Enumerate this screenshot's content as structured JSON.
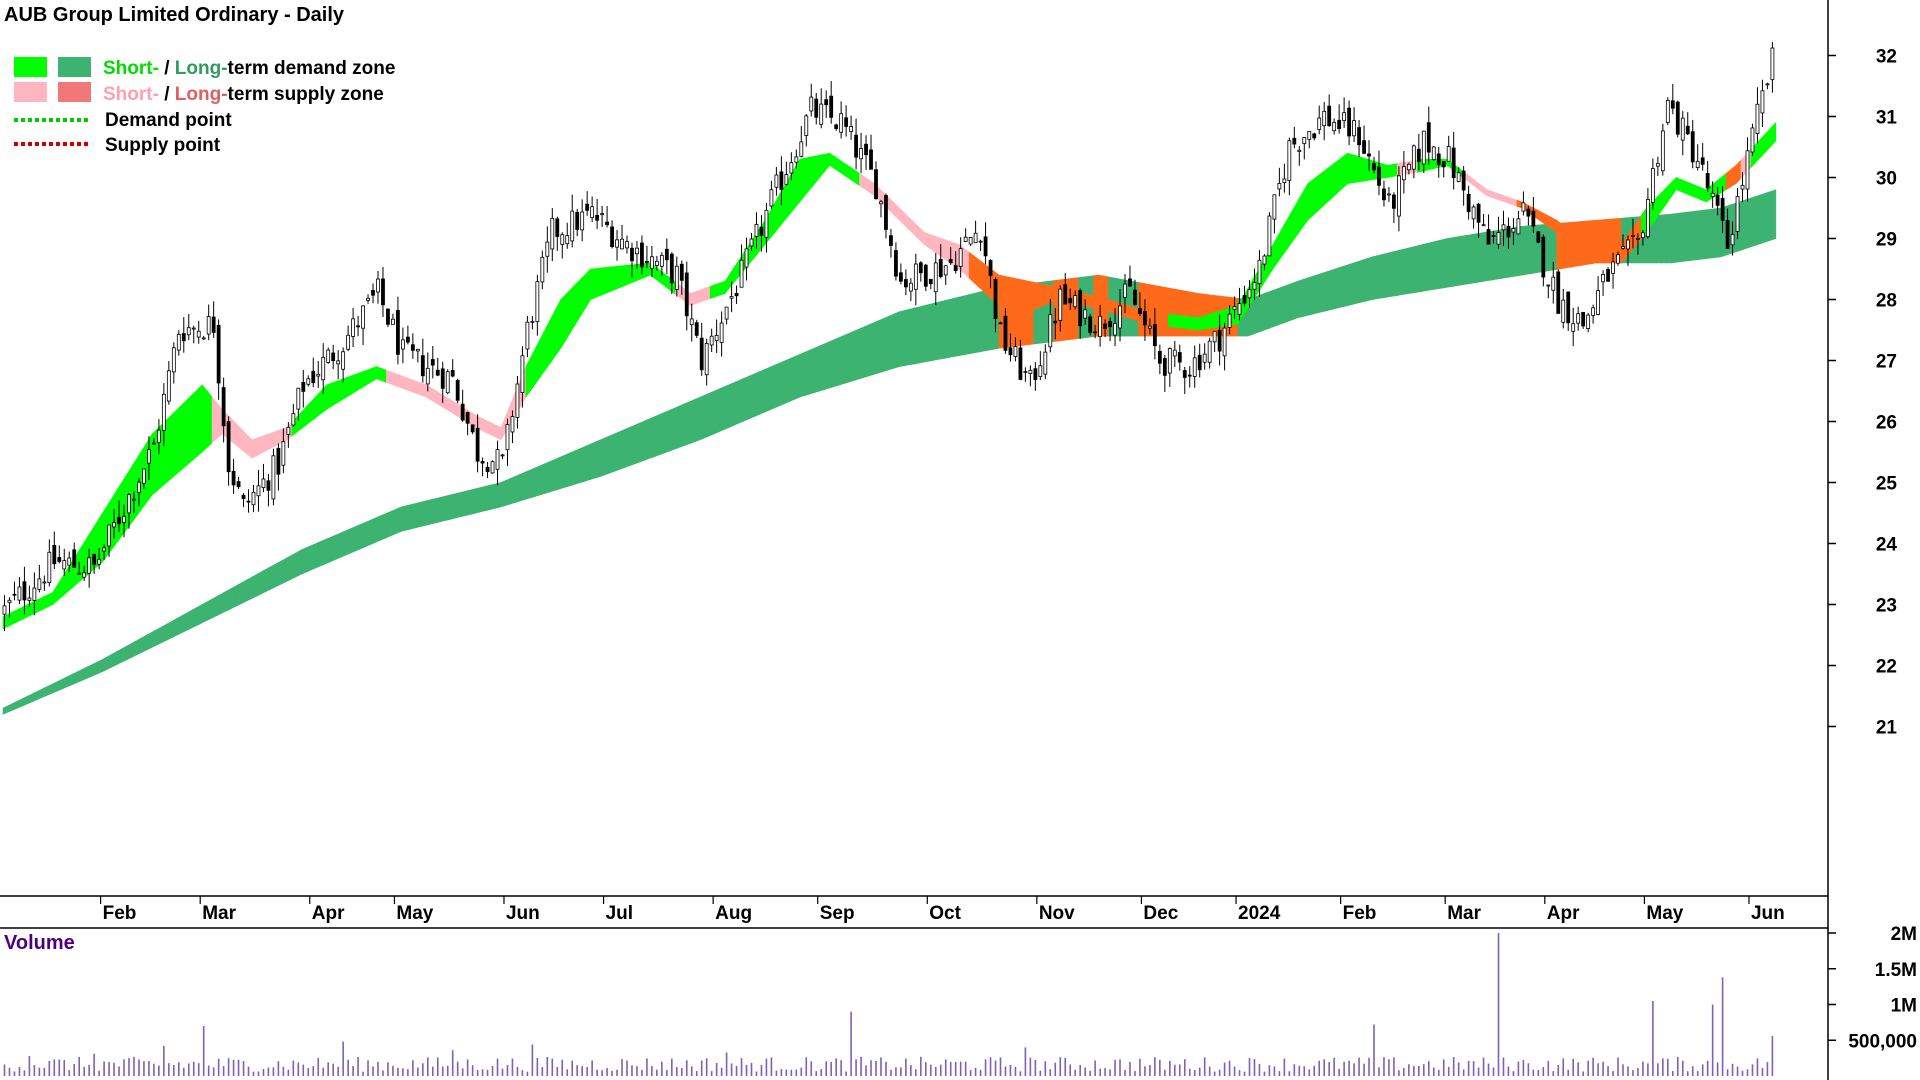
{
  "title": "AUB Group Limited Ordinary - Daily",
  "legend": {
    "demand_zone": {
      "short": "Short-",
      "sep": " / ",
      "long": "Long-",
      "rest": "term demand zone"
    },
    "supply_zone": {
      "short": "Short-",
      "sep": " / ",
      "long": "Long-",
      "rest": "term supply zone"
    },
    "demand_point": "Demand point",
    "supply_point": "Supply point"
  },
  "colors": {
    "short_demand": "#00ff00",
    "long_demand": "#3cb371",
    "short_supply": "#ffb6c1",
    "long_supply": "#f07878",
    "active_supply": "#ff6a1a",
    "demand_point": "#00cc00",
    "supply_point": "#cc0000",
    "candle": "#000000",
    "volume_bar": "#8060b0",
    "volume_label": "#4b0082"
  },
  "chart_data": {
    "type": "candlestick",
    "title": "AUB Group Limited Ordinary - Daily",
    "price_axis": {
      "min": 20.9,
      "max": 32.8,
      "ticks": [
        21,
        22,
        23,
        24,
        25,
        26,
        27,
        28,
        29,
        30,
        31,
        32
      ]
    },
    "months": [
      "Feb",
      "Mar",
      "Apr",
      "May",
      "Jun",
      "Jul",
      "Aug",
      "Sep",
      "Oct",
      "Nov",
      "Dec",
      "2024",
      "Feb",
      "Mar",
      "Apr",
      "May",
      "Jun"
    ],
    "month_start_index": [
      20,
      40,
      62,
      79,
      101,
      121,
      143,
      164,
      186,
      208,
      229,
      248,
      269,
      290,
      310,
      330,
      351
    ],
    "total_sessions": 356,
    "close_anchors": [
      [
        0,
        22.9
      ],
      [
        10,
        23.7
      ],
      [
        18,
        23.6
      ],
      [
        30,
        25.6
      ],
      [
        35,
        27.5
      ],
      [
        42,
        27.6
      ],
      [
        45,
        25.3
      ],
      [
        48,
        24.6
      ],
      [
        55,
        25.3
      ],
      [
        60,
        26.6
      ],
      [
        68,
        27.3
      ],
      [
        75,
        28.1
      ],
      [
        80,
        27.1
      ],
      [
        90,
        26.7
      ],
      [
        95,
        25.5
      ],
      [
        100,
        25.3
      ],
      [
        105,
        27.5
      ],
      [
        110,
        29.1
      ],
      [
        118,
        29.4
      ],
      [
        125,
        28.9
      ],
      [
        135,
        28.4
      ],
      [
        140,
        27.0
      ],
      [
        148,
        28.4
      ],
      [
        155,
        29.8
      ],
      [
        162,
        31.1
      ],
      [
        168,
        30.9
      ],
      [
        175,
        29.9
      ],
      [
        180,
        28.3
      ],
      [
        190,
        28.6
      ],
      [
        196,
        29.2
      ],
      [
        200,
        27.4
      ],
      [
        206,
        26.6
      ],
      [
        212,
        28.0
      ],
      [
        220,
        27.6
      ],
      [
        226,
        28.1
      ],
      [
        232,
        27.0
      ],
      [
        238,
        26.9
      ],
      [
        244,
        27.4
      ],
      [
        252,
        28.5
      ],
      [
        258,
        30.5
      ],
      [
        265,
        31.0
      ],
      [
        272,
        30.7
      ],
      [
        278,
        29.5
      ],
      [
        285,
        30.6
      ],
      [
        290,
        30.3
      ],
      [
        298,
        28.9
      ],
      [
        305,
        29.4
      ],
      [
        312,
        28.0
      ],
      [
        317,
        27.6
      ],
      [
        322,
        28.4
      ],
      [
        328,
        28.9
      ],
      [
        334,
        31.2
      ],
      [
        340,
        30.3
      ],
      [
        346,
        28.9
      ],
      [
        352,
        31.0
      ],
      [
        356,
        32.2
      ]
    ],
    "short_zone": [
      [
        0,
        22.8,
        22.6
      ],
      [
        10,
        23.2,
        23.0
      ],
      [
        20,
        24.5,
        23.7
      ],
      [
        30,
        25.8,
        24.8
      ],
      [
        40,
        26.6,
        25.5
      ],
      [
        44,
        26.2,
        25.8
      ],
      [
        50,
        25.7,
        25.4
      ],
      [
        57,
        25.9,
        25.7
      ],
      [
        65,
        26.6,
        26.2
      ],
      [
        75,
        26.9,
        26.7
      ],
      [
        85,
        26.6,
        26.4
      ],
      [
        95,
        26.1,
        25.9
      ],
      [
        100,
        25.9,
        25.7
      ],
      [
        105,
        26.9,
        26.4
      ],
      [
        112,
        28.0,
        27.2
      ],
      [
        118,
        28.5,
        28.0
      ],
      [
        130,
        28.6,
        28.4
      ],
      [
        138,
        28.1,
        27.9
      ],
      [
        145,
        28.3,
        28.1
      ],
      [
        153,
        29.3,
        28.9
      ],
      [
        160,
        30.3,
        29.6
      ],
      [
        166,
        30.4,
        30.2
      ],
      [
        175,
        29.9,
        29.7
      ],
      [
        185,
        29.1,
        28.9
      ],
      [
        192,
        28.9,
        28.5
      ],
      [
        200,
        28.4,
        27.9
      ],
      [
        206,
        28.3,
        27.8
      ],
      [
        212,
        28.2,
        28.0
      ],
      [
        222,
        28.0,
        27.8
      ],
      [
        230,
        27.8,
        27.6
      ],
      [
        240,
        27.7,
        27.5
      ],
      [
        248,
        27.9,
        27.6
      ],
      [
        255,
        28.9,
        28.5
      ],
      [
        262,
        29.9,
        29.3
      ],
      [
        270,
        30.4,
        29.9
      ],
      [
        278,
        30.2,
        30.0
      ],
      [
        285,
        30.3,
        30.1
      ],
      [
        290,
        30.3,
        30.2
      ],
      [
        298,
        29.8,
        29.7
      ],
      [
        305,
        29.6,
        29.5
      ],
      [
        312,
        29.3,
        29.1
      ],
      [
        318,
        28.9,
        28.6
      ],
      [
        325,
        28.9,
        28.6
      ],
      [
        330,
        29.5,
        29.1
      ],
      [
        336,
        30.0,
        29.8
      ],
      [
        342,
        29.8,
        29.6
      ],
      [
        348,
        30.2,
        29.9
      ],
      [
        356,
        30.9,
        30.6
      ]
    ],
    "long_zone": [
      [
        0,
        21.3,
        21.2
      ],
      [
        20,
        22.1,
        21.9
      ],
      [
        40,
        23.0,
        22.7
      ],
      [
        60,
        23.9,
        23.5
      ],
      [
        80,
        24.6,
        24.2
      ],
      [
        100,
        25.0,
        24.6
      ],
      [
        120,
        25.7,
        25.1
      ],
      [
        140,
        26.4,
        25.7
      ],
      [
        160,
        27.1,
        26.4
      ],
      [
        180,
        27.8,
        26.9
      ],
      [
        200,
        28.2,
        27.2
      ],
      [
        220,
        28.4,
        27.4
      ],
      [
        240,
        28.1,
        27.4
      ],
      [
        250,
        28.0,
        27.4
      ],
      [
        260,
        28.3,
        27.7
      ],
      [
        275,
        28.7,
        28.0
      ],
      [
        290,
        29.0,
        28.2
      ],
      [
        305,
        29.2,
        28.4
      ],
      [
        320,
        29.3,
        28.6
      ],
      [
        335,
        29.4,
        28.6
      ],
      [
        345,
        29.5,
        28.7
      ],
      [
        356,
        29.8,
        29.0
      ]
    ],
    "long_supply_spans": [
      [
        200,
        206
      ],
      [
        211,
        215
      ],
      [
        219,
        221
      ],
      [
        228,
        247
      ],
      [
        312,
        324
      ]
    ],
    "short_supply_spans": [
      [
        42,
        57
      ],
      [
        77,
        89
      ],
      [
        90,
        104
      ],
      [
        135,
        141
      ],
      [
        172,
        220
      ],
      [
        221,
        233
      ],
      [
        280,
        283
      ],
      [
        293,
        328
      ],
      [
        346,
        350
      ]
    ],
    "volume_axis": {
      "min": 0,
      "max": 2000000,
      "ticks": [
        500000,
        1000000,
        1500000,
        2000000
      ],
      "tick_labels": [
        "500,000",
        "1M",
        "1.5M",
        "2M"
      ]
    },
    "volume_label": "Volume",
    "volume_spikes": [
      [
        5,
        280000
      ],
      [
        18,
        310000
      ],
      [
        32,
        420000
      ],
      [
        40,
        700000
      ],
      [
        68,
        480000
      ],
      [
        90,
        360000
      ],
      [
        106,
        440000
      ],
      [
        145,
        330000
      ],
      [
        170,
        900000
      ],
      [
        205,
        400000
      ],
      [
        275,
        720000
      ],
      [
        300,
        2000000
      ],
      [
        331,
        1050000
      ],
      [
        343,
        1000000
      ],
      [
        345,
        1380000
      ],
      [
        355,
        560000
      ]
    ]
  }
}
